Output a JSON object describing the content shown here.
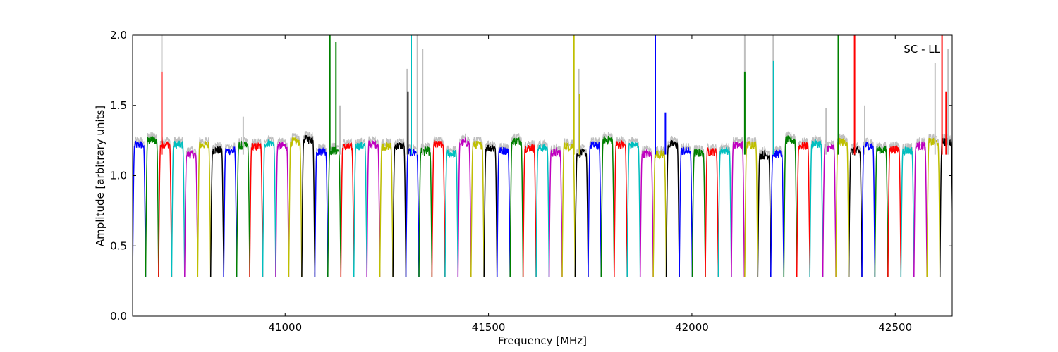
{
  "chart_data": {
    "type": "line",
    "annotation": "SC - LL",
    "xlabel": "Frequency [MHz]",
    "ylabel": "Amplitude [arbitrary units]",
    "xlim": [
      40625,
      42640
    ],
    "ylim": [
      0.0,
      2.0
    ],
    "x_ticks": [
      41000,
      41500,
      42000,
      42500
    ],
    "x_tick_labels": [
      "41000",
      "41500",
      "42000",
      "42500"
    ],
    "y_ticks": [
      0.0,
      0.5,
      1.0,
      1.5,
      2.0
    ],
    "y_tick_labels": [
      "0.0",
      "0.5",
      "1.0",
      "1.5",
      "2.0"
    ],
    "grid": false,
    "raw_color": "#bfbfbf",
    "channel_colors": [
      "#0000ff",
      "#008000",
      "#ff0000",
      "#00bfbf",
      "#bf00bf",
      "#bfbf00",
      "#000000"
    ],
    "channel_width_mhz": 32,
    "dip_level": 0.28,
    "passband_level": 1.2,
    "segments": [
      {
        "start": 40625,
        "count": 47
      },
      {
        "start": 42130,
        "count": 16
      }
    ],
    "spikes": [
      {
        "x": 40697,
        "top": 2.0,
        "color": "#bfbfbf"
      },
      {
        "x": 40697,
        "top": 1.74,
        "color": "#ff0000"
      },
      {
        "x": 40897,
        "top": 1.42,
        "color": "#bfbfbf"
      },
      {
        "x": 41110,
        "top": 2.0,
        "color": "#008000"
      },
      {
        "x": 41125,
        "top": 1.95,
        "color": "#008000"
      },
      {
        "x": 41135,
        "top": 1.5,
        "color": "#bfbfbf"
      },
      {
        "x": 41300,
        "top": 1.76,
        "color": "#bfbfbf"
      },
      {
        "x": 41302,
        "top": 1.6,
        "color": "#000000"
      },
      {
        "x": 41310,
        "top": 2.0,
        "color": "#00bfbf"
      },
      {
        "x": 41325,
        "top": 2.0,
        "color": "#bfbfbf"
      },
      {
        "x": 41338,
        "top": 1.9,
        "color": "#bfbfbf"
      },
      {
        "x": 41710,
        "top": 2.0,
        "color": "#bfbf00"
      },
      {
        "x": 41722,
        "top": 1.76,
        "color": "#bfbfbf"
      },
      {
        "x": 41724,
        "top": 1.58,
        "color": "#bfbf00"
      },
      {
        "x": 41910,
        "top": 2.0,
        "color": "#0000ff"
      },
      {
        "x": 41935,
        "top": 1.45,
        "color": "#0000ff"
      },
      {
        "x": 42130,
        "top": 2.0,
        "color": "#bfbfbf"
      },
      {
        "x": 42130,
        "top": 1.74,
        "color": "#008000"
      },
      {
        "x": 42200,
        "top": 2.0,
        "color": "#bfbfbf"
      },
      {
        "x": 42201,
        "top": 1.82,
        "color": "#00bfbf"
      },
      {
        "x": 42330,
        "top": 1.48,
        "color": "#bfbfbf"
      },
      {
        "x": 42360,
        "top": 2.0,
        "color": "#008000"
      },
      {
        "x": 42400,
        "top": 2.0,
        "color": "#ff0000"
      },
      {
        "x": 42425,
        "top": 1.5,
        "color": "#bfbfbf"
      },
      {
        "x": 42598,
        "top": 1.8,
        "color": "#bfbfbf"
      },
      {
        "x": 42615,
        "top": 2.0,
        "color": "#ff0000"
      },
      {
        "x": 42625,
        "top": 1.6,
        "color": "#ff0000"
      },
      {
        "x": 42630,
        "top": 1.9,
        "color": "#bfbfbf"
      }
    ]
  }
}
